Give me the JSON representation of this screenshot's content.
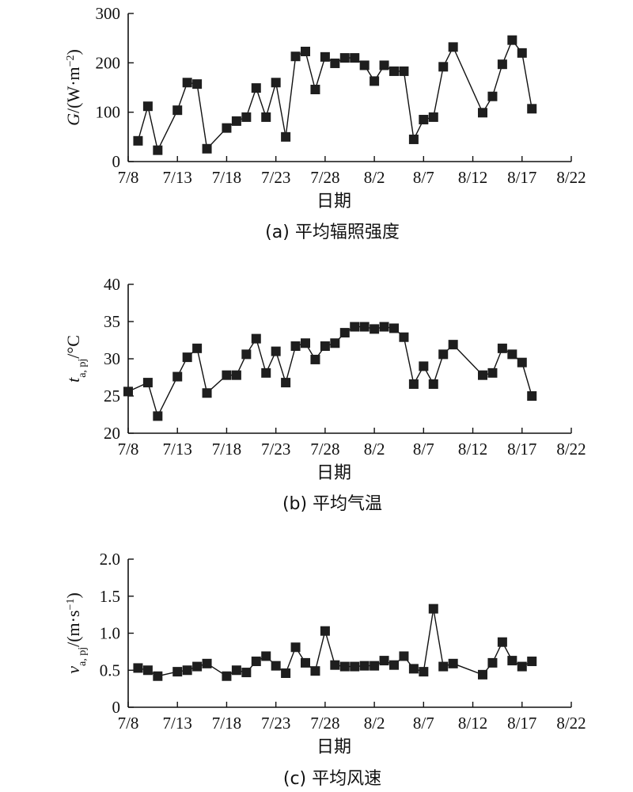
{
  "chart_data": [
    {
      "id": "irradiance",
      "type": "line",
      "caption": "(a) 平均辐照强度",
      "xlabel": "日期",
      "ylabel_parts": [
        {
          "text": "G",
          "style": "italic"
        },
        {
          "text": "/(W·m",
          "style": "normal"
        },
        {
          "text": "−2",
          "style": "sup"
        },
        {
          "text": ")",
          "style": "normal"
        }
      ],
      "xlim": [
        "7/8",
        "8/22"
      ],
      "ylim": [
        0,
        300
      ],
      "x_ticks": [
        "7/8",
        "7/13",
        "7/18",
        "7/23",
        "7/28",
        "8/2",
        "8/7",
        "8/12",
        "8/17",
        "8/22"
      ],
      "y_ticks": [
        "0",
        "100",
        "200",
        "300"
      ],
      "y_tick_values": [
        0,
        100,
        200,
        300
      ],
      "marker": "square",
      "x": [
        "7/9",
        "7/10",
        "7/11",
        "7/13",
        "7/14",
        "7/15",
        "7/16",
        "7/18",
        "7/19",
        "7/20",
        "7/21",
        "7/22",
        "7/23",
        "7/24",
        "7/25",
        "7/26",
        "7/27",
        "7/28",
        "7/29",
        "7/30",
        "7/31",
        "8/1",
        "8/2",
        "8/3",
        "8/4",
        "8/5",
        "8/6",
        "8/7",
        "8/8",
        "8/9",
        "8/10",
        "8/13",
        "8/14",
        "8/15",
        "8/16",
        "8/17",
        "8/18"
      ],
      "y": [
        42,
        112,
        23,
        104,
        160,
        157,
        26,
        68,
        82,
        90,
        149,
        90,
        160,
        50,
        213,
        223,
        146,
        212,
        199,
        210,
        210,
        195,
        163,
        195,
        183,
        183,
        45,
        85,
        90,
        192,
        232,
        99,
        132,
        197,
        246,
        220,
        107
      ]
    },
    {
      "id": "air-temperature",
      "type": "line",
      "caption": "(b) 平均气温",
      "xlabel": "日期",
      "ylabel_parts": [
        {
          "text": "t",
          "style": "italic"
        },
        {
          "text": "a, pj",
          "style": "sub"
        },
        {
          "text": "/°C",
          "style": "normal"
        }
      ],
      "xlim": [
        "7/8",
        "8/22"
      ],
      "ylim": [
        20,
        40
      ],
      "x_ticks": [
        "7/8",
        "7/13",
        "7/18",
        "7/23",
        "7/28",
        "8/2",
        "8/7",
        "8/12",
        "8/17",
        "8/22"
      ],
      "y_ticks": [
        "20",
        "25",
        "30",
        "35",
        "40"
      ],
      "y_tick_values": [
        20,
        25,
        30,
        35,
        40
      ],
      "marker": "square",
      "x": [
        "7/8",
        "7/10",
        "7/11",
        "7/13",
        "7/14",
        "7/15",
        "7/16",
        "7/18",
        "7/19",
        "7/20",
        "7/21",
        "7/22",
        "7/23",
        "7/24",
        "7/25",
        "7/26",
        "7/27",
        "7/28",
        "7/29",
        "7/30",
        "7/31",
        "8/1",
        "8/2",
        "8/3",
        "8/4",
        "8/5",
        "8/6",
        "8/7",
        "8/8",
        "8/9",
        "8/10",
        "8/13",
        "8/14",
        "8/15",
        "8/16",
        "8/17",
        "8/18"
      ],
      "y": [
        25.6,
        26.8,
        22.3,
        27.6,
        30.2,
        31.4,
        25.4,
        27.8,
        27.8,
        30.6,
        32.7,
        28.1,
        31.0,
        26.8,
        31.7,
        32.1,
        29.9,
        31.7,
        32.1,
        33.5,
        34.3,
        34.3,
        34.0,
        34.3,
        34.1,
        32.9,
        26.6,
        29.0,
        26.6,
        30.6,
        31.9,
        27.8,
        28.1,
        31.4,
        30.6,
        29.5,
        25.0
      ]
    },
    {
      "id": "wind-speed",
      "type": "line",
      "caption": "(c) 平均风速",
      "xlabel": "日期",
      "ylabel_parts": [
        {
          "text": "v",
          "style": "italic"
        },
        {
          "text": "a, pj",
          "style": "sub"
        },
        {
          "text": "/(m·s",
          "style": "normal"
        },
        {
          "text": "−1",
          "style": "sup"
        },
        {
          "text": ")",
          "style": "normal"
        }
      ],
      "xlim": [
        "7/8",
        "8/22"
      ],
      "ylim": [
        0,
        2.0
      ],
      "x_ticks": [
        "7/8",
        "7/13",
        "7/18",
        "7/23",
        "7/28",
        "8/2",
        "8/7",
        "8/12",
        "8/17",
        "8/22"
      ],
      "y_ticks": [
        "0",
        "0.5",
        "1.0",
        "1.5",
        "2.0"
      ],
      "y_tick_values": [
        0,
        0.5,
        1.0,
        1.5,
        2.0
      ],
      "marker": "square",
      "x": [
        "7/9",
        "7/10",
        "7/11",
        "7/13",
        "7/14",
        "7/15",
        "7/16",
        "7/18",
        "7/19",
        "7/20",
        "7/21",
        "7/22",
        "7/23",
        "7/24",
        "7/25",
        "7/26",
        "7/27",
        "7/28",
        "7/29",
        "7/30",
        "7/31",
        "8/1",
        "8/2",
        "8/3",
        "8/4",
        "8/5",
        "8/6",
        "8/7",
        "8/8",
        "8/9",
        "8/10",
        "8/13",
        "8/14",
        "8/15",
        "8/16",
        "8/17",
        "8/18"
      ],
      "y": [
        0.53,
        0.5,
        0.42,
        0.48,
        0.5,
        0.55,
        0.59,
        0.42,
        0.5,
        0.47,
        0.62,
        0.69,
        0.56,
        0.46,
        0.81,
        0.6,
        0.49,
        1.03,
        0.57,
        0.55,
        0.55,
        0.56,
        0.56,
        0.63,
        0.57,
        0.69,
        0.52,
        0.48,
        1.33,
        0.55,
        0.59,
        0.44,
        0.6,
        0.88,
        0.63,
        0.55,
        0.62
      ]
    }
  ]
}
